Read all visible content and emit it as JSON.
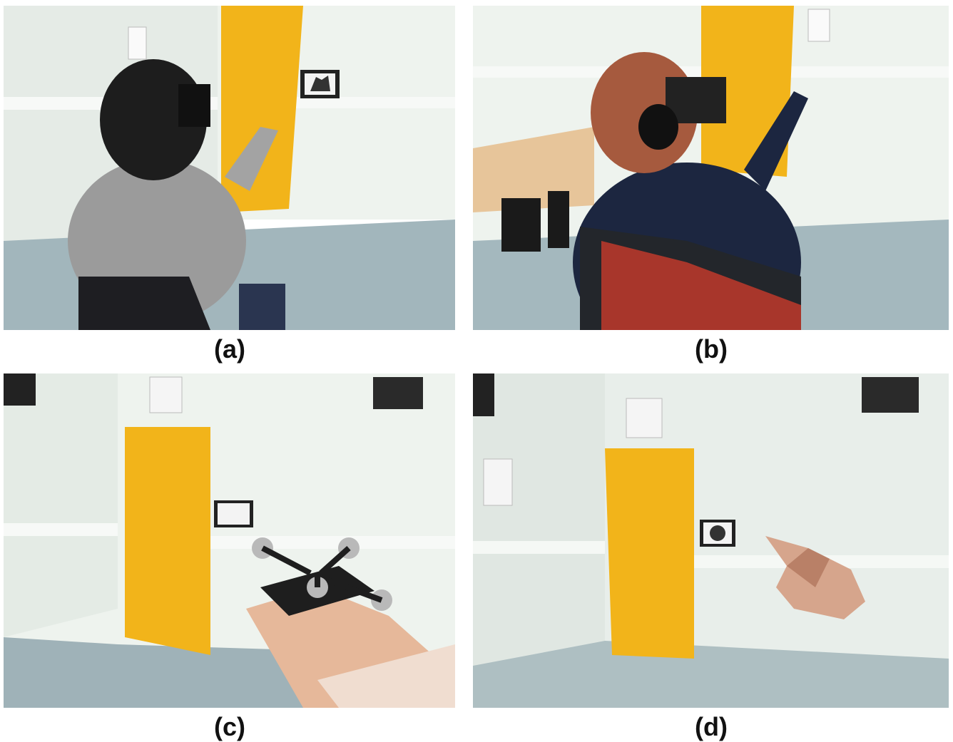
{
  "figure": {
    "panels": [
      {
        "id": "a",
        "caption": "(a)"
      },
      {
        "id": "b",
        "caption": "(b)"
      },
      {
        "id": "c",
        "caption": "(c)"
      },
      {
        "id": "d",
        "caption": "(d)"
      }
    ]
  },
  "colors": {
    "wall": "#e9efe9",
    "door": "#f3b51b",
    "floor": "#9fb2b8",
    "chair": "#1f1f23",
    "chair_red": "#c0392b"
  }
}
